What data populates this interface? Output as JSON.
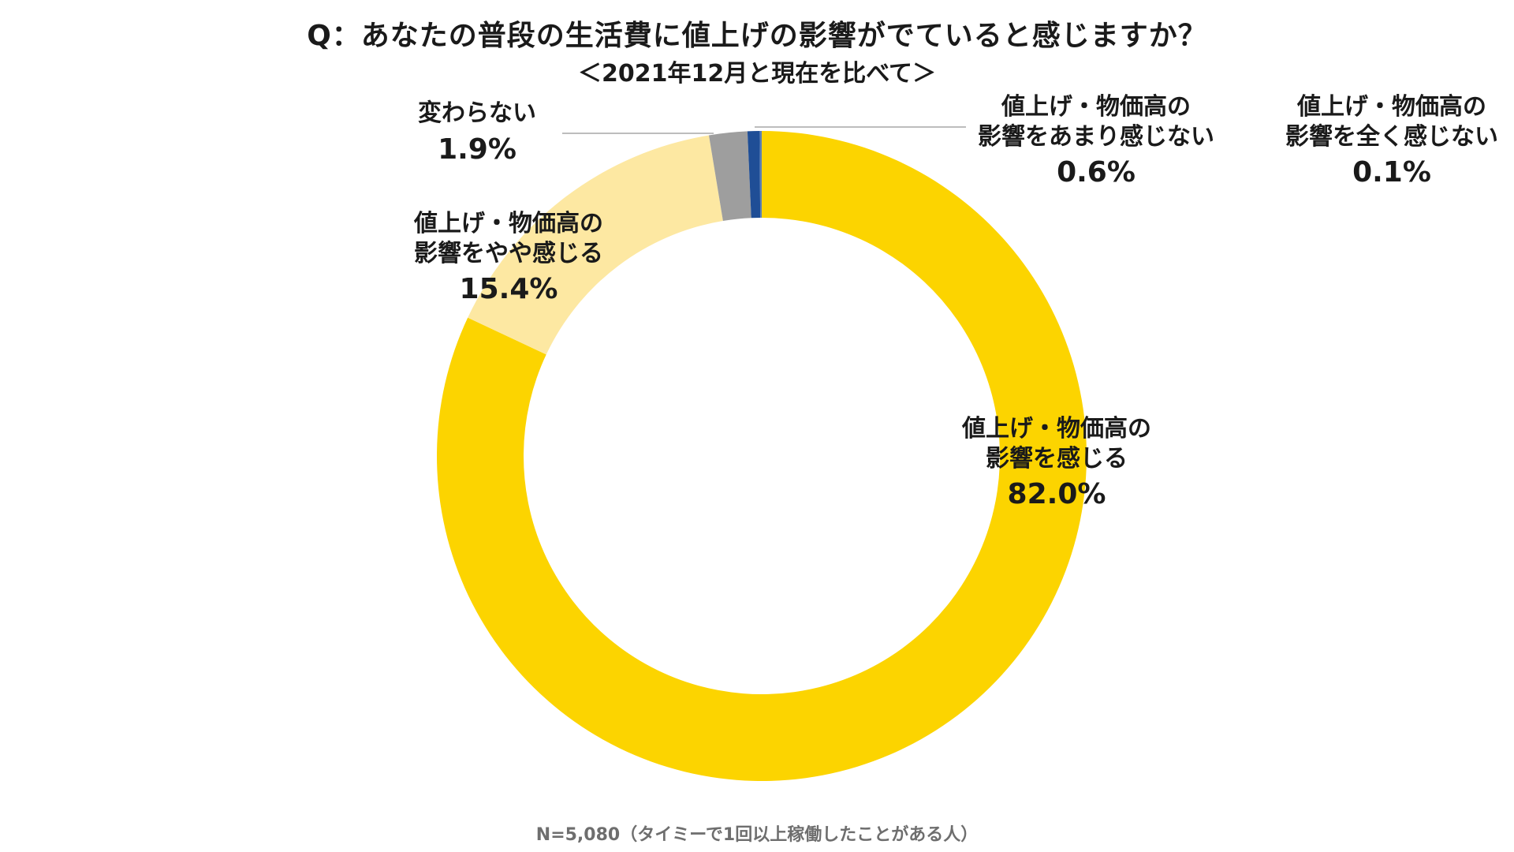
{
  "title": "Q：あなたの普段の生活費に値上げの影響がでていると感じますか？",
  "subtitle": "＜2021年12月と現在を比べて＞",
  "footnote": "N=5,080（タイミーで1回以上稼働したことがある人）",
  "chart_data": {
    "type": "pie",
    "variant": "donut",
    "start": "top",
    "direction": "clockwise",
    "slices": [
      {
        "lines": [
          "値上げ・物価高の",
          "影響を感じる"
        ],
        "value": 82.0,
        "display": "82.0%",
        "color": "#FCD400"
      },
      {
        "lines": [
          "値上げ・物価高の",
          "影響をやや感じる"
        ],
        "value": 15.4,
        "display": "15.4%",
        "color": "#FDE8A2"
      },
      {
        "lines": [
          "変わらない"
        ],
        "value": 1.9,
        "display": "1.9%",
        "color": "#9E9E9E"
      },
      {
        "lines": [
          "値上げ・物価高の",
          "影響をあまり感じない"
        ],
        "value": 0.6,
        "display": "0.6%",
        "color": "#1F4E96"
      },
      {
        "lines": [
          "値上げ・物価高の",
          "影響を全く感じない"
        ],
        "value": 0.1,
        "display": "0.1%",
        "color": "#5B7FB5"
      }
    ]
  }
}
